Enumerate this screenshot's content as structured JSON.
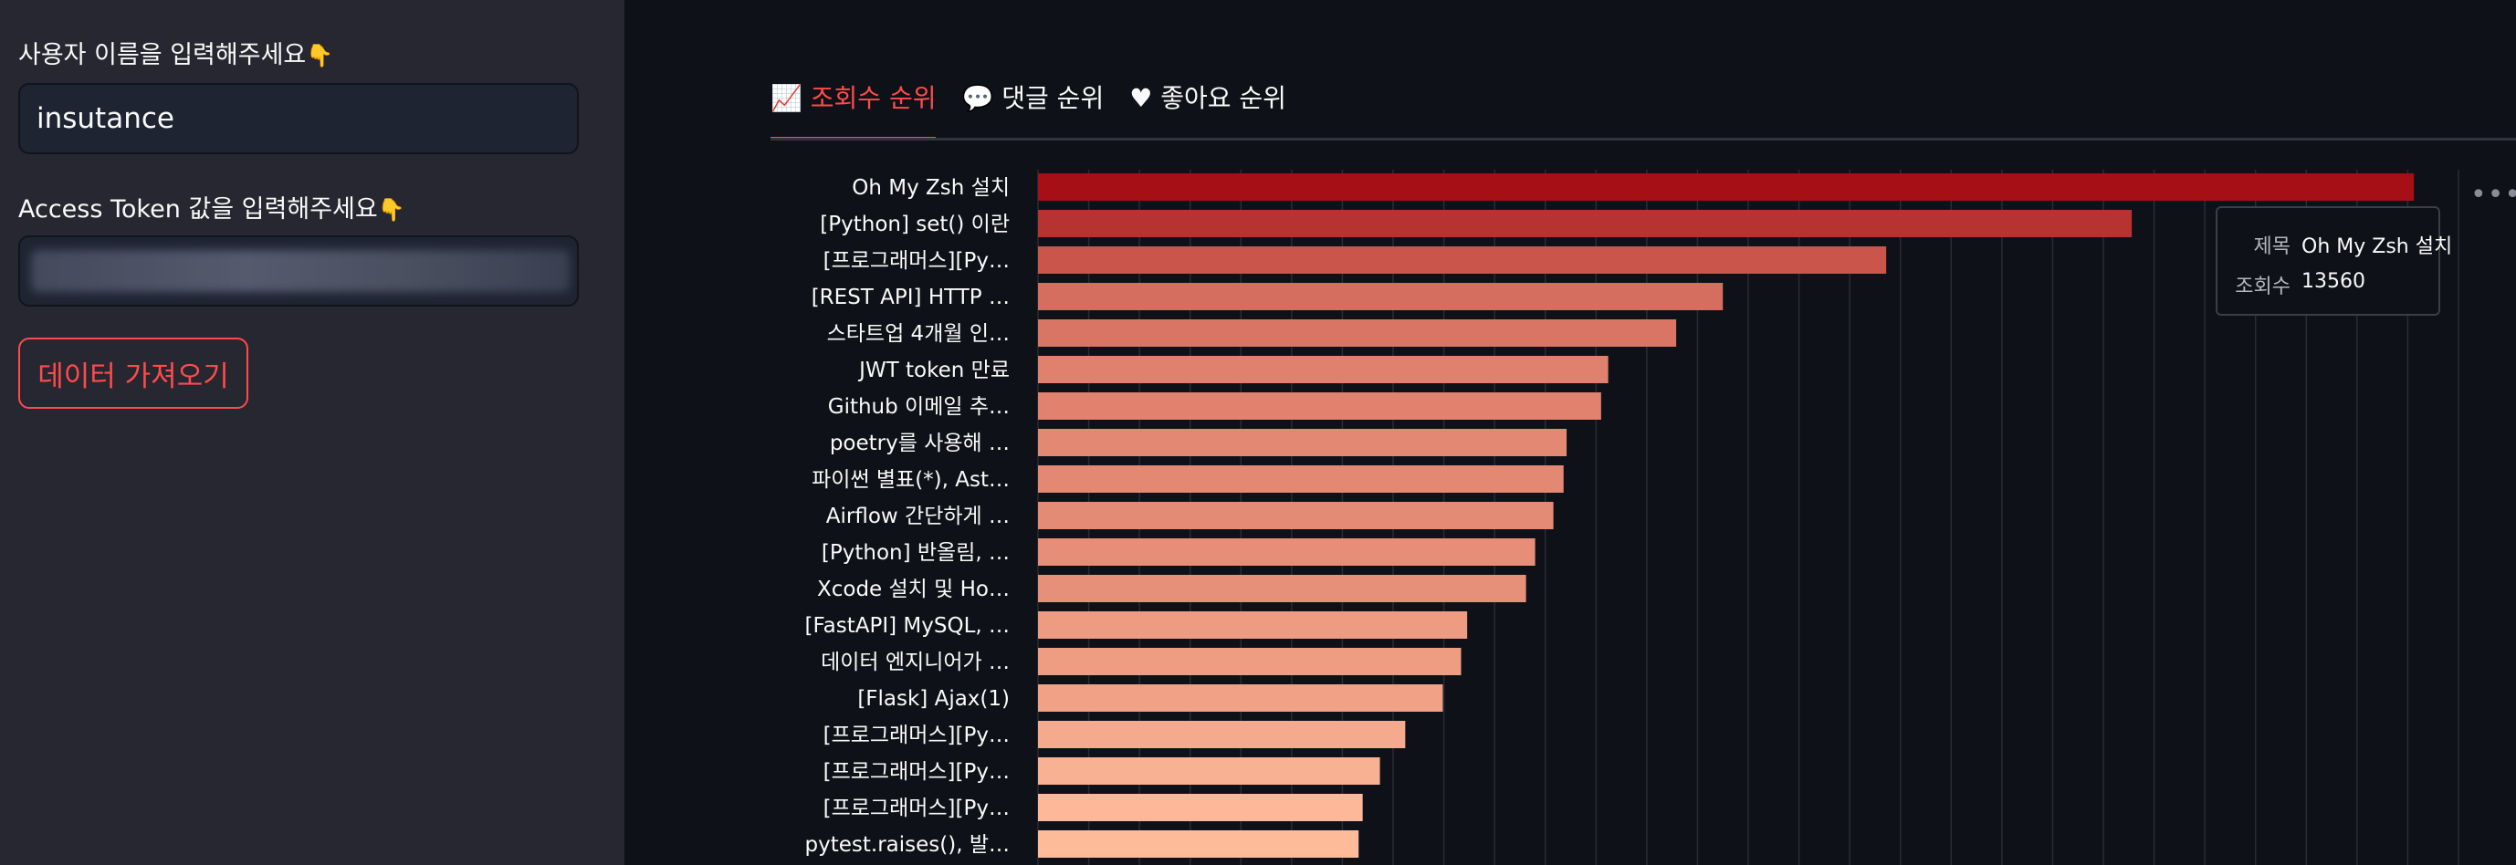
{
  "sidebar": {
    "username_label": "사용자 이름을 입력해주세요",
    "username_value": "insutance",
    "token_label": "Access Token 값을 입력해주세요",
    "pointer_emoji": "👇",
    "fetch_button": "데이터 가져오기"
  },
  "tabs": [
    {
      "icon": "📈",
      "label": "조회수 순위",
      "active": true
    },
    {
      "icon": "💬",
      "label": "댓글 순위",
      "active": false
    },
    {
      "icon": "♥",
      "label": "좋아요 순위",
      "active": false
    }
  ],
  "tooltip": {
    "title_key": "제목",
    "title_value": "Oh My Zsh 설치",
    "views_key": "조회수",
    "views_value": "13560"
  },
  "more_menu": "•••",
  "chart_data": {
    "type": "bar",
    "orientation": "horizontal",
    "categories": [
      "Oh My Zsh 설치",
      "[Python] set() 이란",
      "[프로그래머스][Py…",
      "[REST API] HTTP …",
      "스타트업 4개월 인…",
      "JWT token 만료",
      "Github 이메일 추…",
      "poetry를 사용해 …",
      "파이썬 별표(*), Ast…",
      "Airflow 간단하게 …",
      "[Python] 반올림, …",
      "Xcode 설치 및 Ho…",
      "[FastAPI] MySQL, …",
      "데이터 엔지니어가 …",
      "[Flask] Ajax(1)",
      "[프로그래머스][Py…",
      "[프로그래머스][Py…",
      "[프로그래머스][Py…",
      "pytest.raises(), 발…"
    ],
    "values": [
      13560,
      10780,
      8360,
      6750,
      6290,
      5620,
      5550,
      5210,
      5180,
      5080,
      4900,
      4810,
      4230,
      4170,
      3990,
      3620,
      3370,
      3200,
      3160
    ],
    "xlim": [
      0,
      14000
    ],
    "grid": true,
    "color_scale": [
      "#fdbb9a",
      "#a50f15"
    ]
  }
}
